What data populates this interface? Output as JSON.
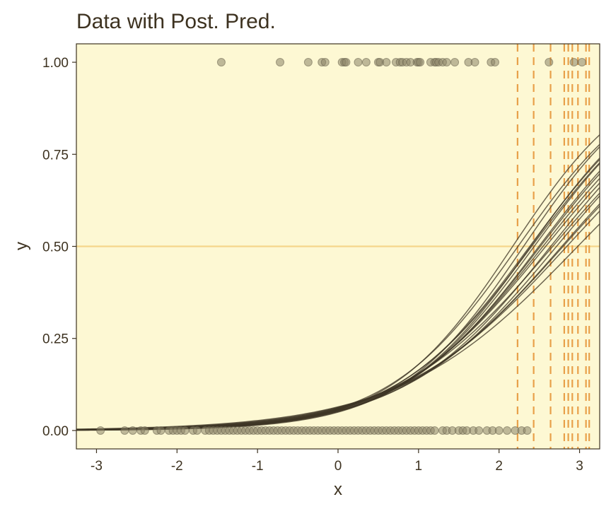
{
  "chart_data": {
    "type": "scatter",
    "title": "Data with Post. Pred.",
    "xlabel": "x",
    "ylabel": "y",
    "xlim": [
      -3.25,
      3.25
    ],
    "ylim": [
      -0.05,
      1.05
    ],
    "x_ticks": [
      -3,
      -2,
      -1,
      0,
      1,
      2,
      3
    ],
    "x_tick_labels": [
      "-3",
      "-2",
      "-1",
      "0",
      "1",
      "2",
      "3"
    ],
    "y_ticks": [
      0,
      0.25,
      0.5,
      0.75,
      1.0
    ],
    "y_tick_labels": [
      "0.00",
      "0.25",
      "0.50",
      "0.75",
      "1.00"
    ],
    "grid": false,
    "legend": "none",
    "colors": {
      "panel_bg": "#fdf8d3",
      "points": "#8a8468",
      "curves": "#3d3626",
      "threshold_lines": "#e8a04a",
      "hline": "#f5d68a",
      "text": "#3d3220"
    },
    "points_y1_x": [
      -1.45,
      -0.72,
      -0.37,
      -0.2,
      -0.16,
      0.05,
      0.08,
      0.1,
      0.25,
      0.35,
      0.5,
      0.52,
      0.6,
      0.72,
      0.77,
      0.8,
      0.85,
      0.9,
      0.98,
      1.0,
      1.02,
      1.15,
      1.2,
      1.22,
      1.25,
      1.3,
      1.35,
      1.45,
      1.62,
      1.7,
      1.9,
      1.95,
      2.62,
      2.93,
      3.03
    ],
    "points_y0_x": [
      -2.95,
      -2.65,
      -2.55,
      -2.45,
      -2.4,
      -2.25,
      -2.2,
      -2.1,
      -2.05,
      -2.0,
      -1.95,
      -1.9,
      -1.8,
      -1.75,
      -1.65,
      -1.6,
      -1.55,
      -1.5,
      -1.45,
      -1.4,
      -1.35,
      -1.3,
      -1.25,
      -1.2,
      -1.15,
      -1.1,
      -1.05,
      -1.0,
      -0.95,
      -0.9,
      -0.85,
      -0.8,
      -0.75,
      -0.7,
      -0.65,
      -0.6,
      -0.55,
      -0.5,
      -0.45,
      -0.4,
      -0.35,
      -0.3,
      -0.25,
      -0.2,
      -0.15,
      -0.1,
      -0.05,
      0.0,
      0.05,
      0.1,
      0.15,
      0.2,
      0.25,
      0.3,
      0.35,
      0.4,
      0.45,
      0.5,
      0.55,
      0.6,
      0.65,
      0.7,
      0.75,
      0.8,
      0.85,
      0.9,
      0.95,
      1.0,
      1.05,
      1.1,
      1.15,
      1.2,
      1.3,
      1.35,
      1.42,
      1.5,
      1.55,
      1.6,
      1.68,
      1.75,
      1.85,
      1.92,
      2.0,
      2.1,
      2.2,
      2.28,
      2.35
    ],
    "threshold_x": [
      2.23,
      2.43,
      2.64,
      2.81,
      2.86,
      2.91,
      2.98,
      3.08,
      3.12
    ],
    "hline_y": 0.5,
    "curves": [
      {
        "a": -2.75,
        "b": 1.23
      },
      {
        "a": -2.81,
        "b": 1.18
      },
      {
        "a": -2.82,
        "b": 1.3
      },
      {
        "a": -2.76,
        "b": 1.07
      },
      {
        "a": -2.87,
        "b": 1.15
      },
      {
        "a": -2.8,
        "b": 1.1
      },
      {
        "a": -2.92,
        "b": 1.22
      },
      {
        "a": -2.85,
        "b": 1.05
      },
      {
        "a": -2.78,
        "b": 1.0
      },
      {
        "a": -2.7,
        "b": 0.95
      },
      {
        "a": -2.84,
        "b": 1.13
      },
      {
        "a": -2.95,
        "b": 1.28
      },
      {
        "a": -2.72,
        "b": 1.02
      },
      {
        "a": -2.88,
        "b": 1.09
      },
      {
        "a": -2.79,
        "b": 1.16
      },
      {
        "a": -2.74,
        "b": 0.98
      },
      {
        "a": -2.68,
        "b": 0.9
      },
      {
        "a": -2.9,
        "b": 1.19
      }
    ]
  }
}
